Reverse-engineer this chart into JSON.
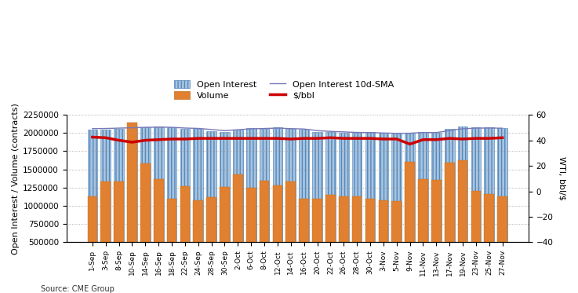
{
  "source_text": "Source: CME Group",
  "ylabel_left": "Open Interest / Volume (contracts)",
  "ylabel_right": "WTI, bbl/$",
  "ylim_left": [
    500000,
    2250000
  ],
  "ylim_right": [
    -40,
    60
  ],
  "yticks_left": [
    500000,
    750000,
    1000000,
    1250000,
    1500000,
    1750000,
    2000000,
    2250000
  ],
  "yticks_right": [
    -40,
    -20,
    0,
    20,
    40,
    60
  ],
  "x_labels": [
    "1-Sep",
    "3-Sep",
    "8-Sep",
    "10-Sep",
    "14-Sep",
    "16-Sep",
    "18-Sep",
    "22-Sep",
    "24-Sep",
    "28-Sep",
    "30-Sep",
    "2-Oct",
    "6-Oct",
    "8-Oct",
    "12-Oct",
    "14-Oct",
    "16-Oct",
    "20-Oct",
    "22-Oct",
    "26-Oct",
    "28-Oct",
    "30-Oct",
    "3-Nov",
    "5-Nov",
    "9-Nov",
    "11-Nov",
    "13-Nov",
    "17-Nov",
    "19-Nov",
    "23-Nov",
    "25-Nov",
    "27-Nov"
  ],
  "open_interest": [
    2050000,
    2050000,
    2060000,
    2090000,
    2080000,
    2085000,
    2075000,
    2060000,
    2055000,
    2020000,
    2010000,
    2050000,
    2065000,
    2060000,
    2080000,
    2055000,
    2050000,
    2010000,
    2010000,
    2000000,
    2000000,
    2010000,
    2000000,
    1990000,
    1995000,
    2010000,
    2005000,
    2060000,
    2090000,
    2080000,
    2075000,
    2070000
  ],
  "volume": [
    630000,
    840000,
    840000,
    1640000,
    1080000,
    870000,
    600000,
    770000,
    580000,
    620000,
    760000,
    930000,
    750000,
    850000,
    780000,
    840000,
    600000,
    600000,
    650000,
    630000,
    630000,
    600000,
    580000,
    570000,
    1100000,
    870000,
    860000,
    1090000,
    1130000,
    710000,
    660000,
    630000
  ],
  "open_interest_sma": [
    2060000,
    2062000,
    2067000,
    2072000,
    2078000,
    2080000,
    2078000,
    2068000,
    2063000,
    2048000,
    2032000,
    2045000,
    2057000,
    2062000,
    2067000,
    2060000,
    2055000,
    2032000,
    2022000,
    2015000,
    2008000,
    2006000,
    2000000,
    1995000,
    1997000,
    2007000,
    2006000,
    2033000,
    2058000,
    2067000,
    2068000,
    2066000
  ],
  "price_bbl": [
    42.5,
    42.0,
    40.0,
    38.5,
    40.0,
    40.5,
    41.0,
    41.0,
    41.5,
    41.5,
    41.5,
    41.5,
    41.5,
    41.5,
    41.5,
    41.0,
    41.5,
    41.5,
    42.0,
    41.5,
    41.5,
    41.5,
    41.0,
    41.0,
    37.0,
    40.5,
    40.5,
    41.5,
    41.0,
    41.5,
    41.5,
    42.0
  ],
  "bar_color_oi": "#a8c4e0",
  "bar_color_vol": "#e08030",
  "line_color_sma": "#7878b8",
  "line_color_price": "#cc0000",
  "bar_edge_color_oi": "#5588bb",
  "bar_edge_color_vol": "#c07020",
  "background_color": "#ffffff",
  "grid_color": "#999999",
  "base": 500000
}
